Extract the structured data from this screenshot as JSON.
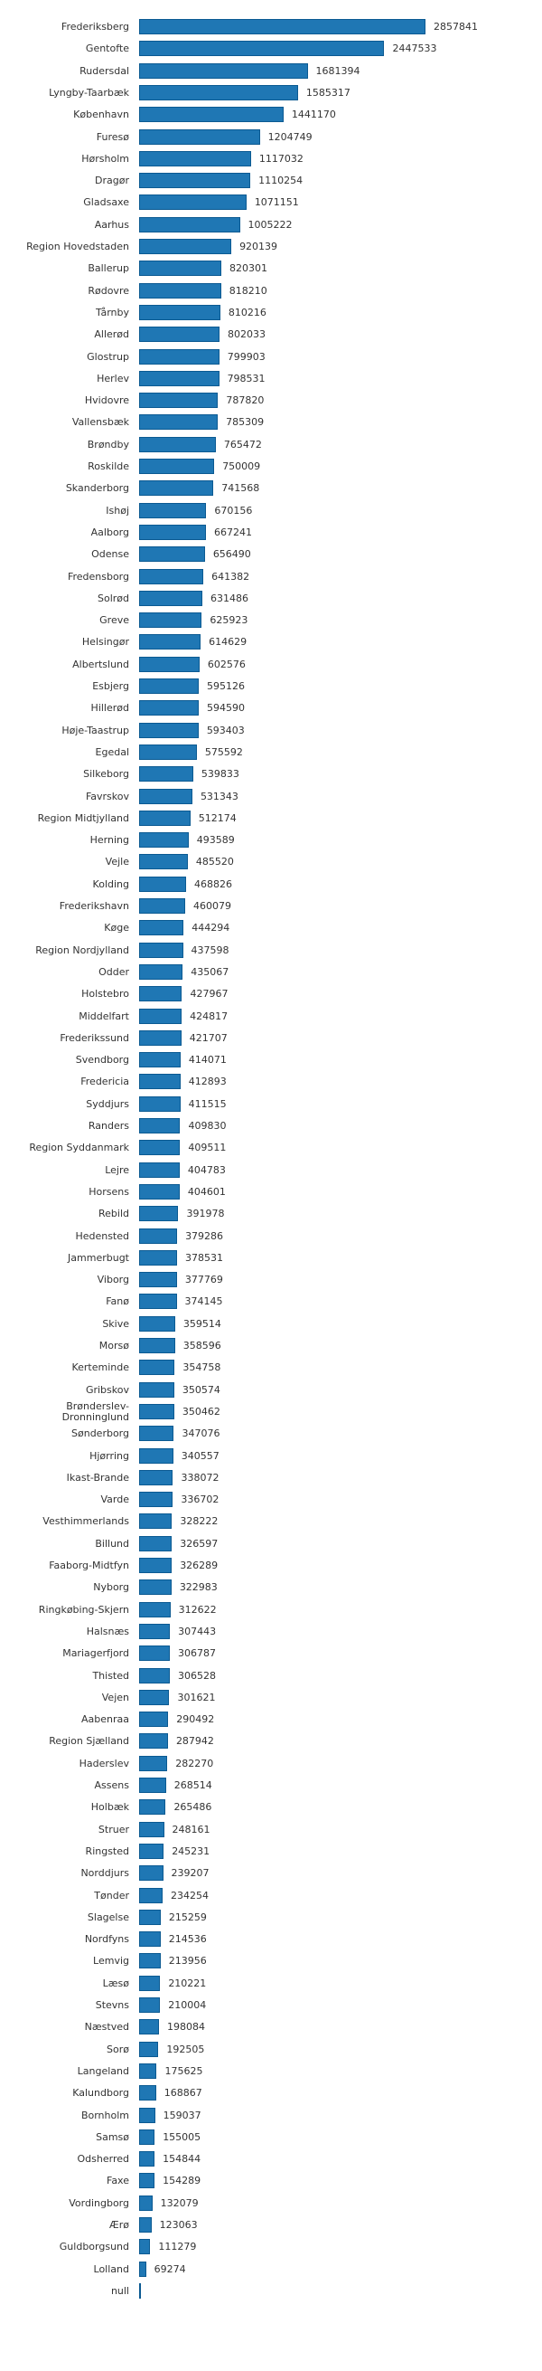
{
  "chart_data": {
    "type": "bar",
    "orientation": "horizontal",
    "title": "",
    "xlabel": "",
    "ylabel": "",
    "grid": false,
    "legend": null,
    "bar_color": "#1f77b4",
    "bar_border_color": "#0b5a92",
    "xlim": [
      0,
      2857841
    ],
    "categories": [
      "Frederiksberg",
      "Gentofte",
      "Rudersdal",
      "Lyngby-Taarbæk",
      "København",
      "Furesø",
      "Hørsholm",
      "Dragør",
      "Gladsaxe",
      "Aarhus",
      "Region Hovedstaden",
      "Ballerup",
      "Rødovre",
      "Tårnby",
      "Allerød",
      "Glostrup",
      "Herlev",
      "Hvidovre",
      "Vallensbæk",
      "Brøndby",
      "Roskilde",
      "Skanderborg",
      "Ishøj",
      "Aalborg",
      "Odense",
      "Fredensborg",
      "Solrød",
      "Greve",
      "Helsingør",
      "Albertslund",
      "Esbjerg",
      "Hillerød",
      "Høje-Taastrup",
      "Egedal",
      "Silkeborg",
      "Favrskov",
      "Region Midtjylland",
      "Herning",
      "Vejle",
      "Kolding",
      "Frederikshavn",
      "Køge",
      "Region Nordjylland",
      "Odder",
      "Holstebro",
      "Middelfart",
      "Frederikssund",
      "Svendborg",
      "Fredericia",
      "Syddjurs",
      "Randers",
      "Region Syddanmark",
      "Lejre",
      "Horsens",
      "Rebild",
      "Hedensted",
      "Jammerbugt",
      "Viborg",
      "Fanø",
      "Skive",
      "Morsø",
      "Kerteminde",
      "Gribskov",
      "Brønderslev-Dronninglund",
      "Sønderborg",
      "Hjørring",
      "Ikast-Brande",
      "Varde",
      "Vesthimmerlands",
      "Billund",
      "Faaborg-Midtfyn",
      "Nyborg",
      "Ringkøbing-Skjern",
      "Halsnæs",
      "Mariagerfjord",
      "Thisted",
      "Vejen",
      "Aabenraa",
      "Region Sjælland",
      "Haderslev",
      "Assens",
      "Holbæk",
      "Struer",
      "Ringsted",
      "Norddjurs",
      "Tønder",
      "Slagelse",
      "Nordfyns",
      "Lemvig",
      "Læsø",
      "Stevns",
      "Næstved",
      "Sorø",
      "Langeland",
      "Kalundborg",
      "Bornholm",
      "Samsø",
      "Odsherred",
      "Faxe",
      "Vordingborg",
      "Ærø",
      "Guldborgsund",
      "Lolland",
      "null"
    ],
    "values": [
      2857841,
      2447533,
      1681394,
      1585317,
      1441170,
      1204749,
      1117032,
      1110254,
      1071151,
      1005222,
      920139,
      820301,
      818210,
      810216,
      802033,
      799903,
      798531,
      787820,
      785309,
      765472,
      750009,
      741568,
      670156,
      667241,
      656490,
      641382,
      631486,
      625923,
      614629,
      602576,
      595126,
      594590,
      593403,
      575592,
      539833,
      531343,
      512174,
      493589,
      485520,
      468826,
      460079,
      444294,
      437598,
      435067,
      427967,
      424817,
      421707,
      414071,
      412893,
      411515,
      409830,
      409511,
      404783,
      404601,
      391978,
      379286,
      378531,
      377769,
      374145,
      359514,
      358596,
      354758,
      350574,
      350462,
      347076,
      340557,
      338072,
      336702,
      328222,
      326597,
      326289,
      322983,
      312622,
      307443,
      306787,
      306528,
      301621,
      290492,
      287942,
      282270,
      268514,
      265486,
      248161,
      245231,
      239207,
      234254,
      215259,
      214536,
      213956,
      210221,
      210004,
      198084,
      192505,
      175625,
      168867,
      159037,
      155005,
      154844,
      154289,
      132079,
      123063,
      111279,
      69274,
      0
    ],
    "value_labels": [
      "2857841",
      "2447533",
      "1681394",
      "1585317",
      "1441170",
      "1204749",
      "1117032",
      "1110254",
      "1071151",
      "1005222",
      "920139",
      "820301",
      "818210",
      "810216",
      "802033",
      "799903",
      "798531",
      "787820",
      "785309",
      "765472",
      "750009",
      "741568",
      "670156",
      "667241",
      "656490",
      "641382",
      "631486",
      "625923",
      "614629",
      "602576",
      "595126",
      "594590",
      "593403",
      "575592",
      "539833",
      "531343",
      "512174",
      "493589",
      "485520",
      "468826",
      "460079",
      "444294",
      "437598",
      "435067",
      "427967",
      "424817",
      "421707",
      "414071",
      "412893",
      "411515",
      "409830",
      "409511",
      "404783",
      "404601",
      "391978",
      "379286",
      "378531",
      "377769",
      "374145",
      "359514",
      "358596",
      "354758",
      "350574",
      "350462",
      "347076",
      "340557",
      "338072",
      "336702",
      "328222",
      "326597",
      "326289",
      "322983",
      "312622",
      "307443",
      "306787",
      "306528",
      "301621",
      "290492",
      "287942",
      "282270",
      "268514",
      "265486",
      "248161",
      "245231",
      "239207",
      "234254",
      "215259",
      "214536",
      "213956",
      "210221",
      "210004",
      "198084",
      "192505",
      "175625",
      "168867",
      "159037",
      "155005",
      "154844",
      "154289",
      "132079",
      "123063",
      "111279",
      "69274",
      ""
    ]
  }
}
